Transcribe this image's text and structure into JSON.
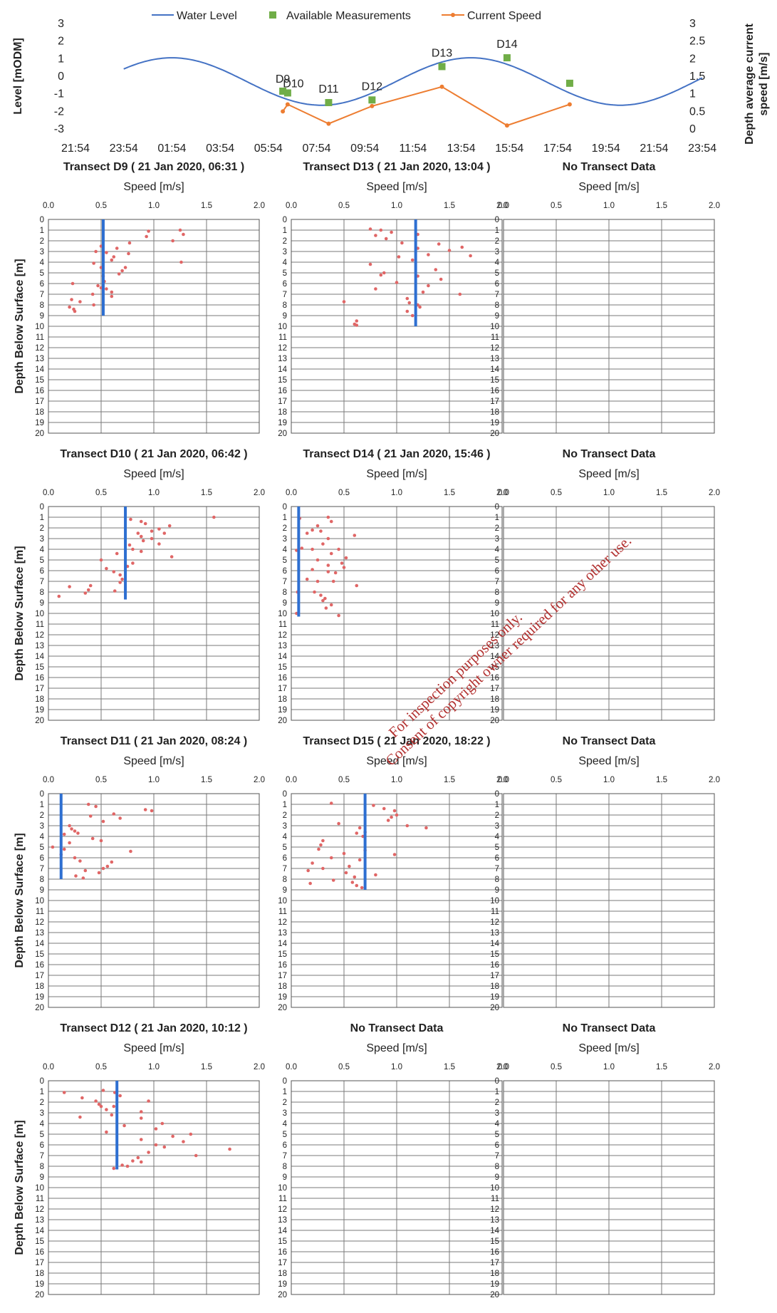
{
  "chart_data": [
    {
      "id": "tide",
      "type": "line",
      "legend": [
        "Water Level",
        "Available Measurements",
        "Current Speed"
      ],
      "ylabel": "Level [mODM]",
      "y2label_lines": [
        "Depth average current",
        "speed [m/s]"
      ],
      "x_ticks": [
        "21:54",
        "23:54",
        "01:54",
        "03:54",
        "05:54",
        "07:54",
        "09:54",
        "11:54",
        "13:54",
        "15:54",
        "17:54",
        "19:54",
        "21:54",
        "23:54"
      ],
      "y_ticks": [
        "3",
        "2",
        "1",
        "0",
        "-1",
        "-2",
        "-3"
      ],
      "y2_ticks": [
        "3",
        "2.5",
        "2",
        "1.5",
        "1",
        "0.5",
        "0"
      ],
      "ylim": [
        -3,
        3
      ],
      "y2lim": [
        0,
        3
      ],
      "x_unit": "hours after 21:54",
      "water_level": {
        "amplitude": 1.35,
        "mean": -0.3,
        "period_h": 12.4,
        "phase_h": 4.0,
        "start_h": 2.0,
        "end_h": 26.0
      },
      "measurements": [
        {
          "label": "D9",
          "x": 8.6,
          "y": -0.85
        },
        {
          "label": "D10",
          "x": 8.8,
          "y": -0.95
        },
        {
          "label": "D11",
          "x": 10.5,
          "y": -1.5
        },
        {
          "label": "D12",
          "x": 12.3,
          "y": -1.35
        },
        {
          "label": "D13",
          "x": 15.2,
          "y": 0.55
        },
        {
          "label": "D14",
          "x": 17.9,
          "y": 1.05
        },
        {
          "label": "",
          "x": 20.5,
          "y": -0.4
        }
      ],
      "current_speed": {
        "x": [
          8.6,
          8.8,
          10.5,
          12.3,
          15.2,
          17.9,
          20.5
        ],
        "y": [
          0.5,
          0.7,
          0.15,
          0.65,
          1.2,
          0.1,
          0.7
        ]
      }
    },
    {
      "id": "t-d9",
      "type": "scatter",
      "title": "Transect D9 ( 21 Jan 2020, 06:31 )",
      "xlabel": "Speed [m/s]",
      "ylabel": "Depth Below Surface [m]",
      "xlim": [
        0,
        2
      ],
      "ylim": [
        0,
        20
      ],
      "mean_speed": 0.52,
      "mean_depth": 9,
      "points": [
        [
          0.95,
          1.1
        ],
        [
          1.25,
          1.0
        ],
        [
          1.28,
          1.4
        ],
        [
          0.93,
          1.6
        ],
        [
          1.18,
          2.0
        ],
        [
          0.77,
          2.2
        ],
        [
          0.5,
          2.5
        ],
        [
          0.65,
          2.7
        ],
        [
          0.45,
          3.0
        ],
        [
          0.55,
          3.1
        ],
        [
          0.76,
          3.2
        ],
        [
          0.62,
          3.5
        ],
        [
          0.6,
          3.8
        ],
        [
          1.26,
          4.0
        ],
        [
          0.43,
          4.1
        ],
        [
          0.73,
          4.5
        ],
        [
          0.5,
          4.5
        ],
        [
          0.7,
          4.8
        ],
        [
          0.67,
          5.1
        ],
        [
          0.52,
          5.3
        ],
        [
          0.53,
          5.8
        ],
        [
          0.47,
          6.2
        ],
        [
          0.23,
          6.0
        ],
        [
          0.5,
          6.4
        ],
        [
          0.55,
          6.5
        ],
        [
          0.6,
          6.8
        ],
        [
          0.42,
          7.0
        ],
        [
          0.6,
          7.2
        ],
        [
          0.22,
          7.5
        ],
        [
          0.3,
          7.7
        ],
        [
          0.43,
          8.0
        ],
        [
          0.2,
          8.2
        ],
        [
          0.24,
          8.4
        ],
        [
          0.25,
          8.6
        ]
      ]
    },
    {
      "id": "t-d13",
      "type": "scatter",
      "title": "Transect D13 ( 21 Jan 2020, 13:04 )",
      "xlabel": "Speed [m/s]",
      "ylabel": "",
      "xlim": [
        0,
        2
      ],
      "ylim": [
        0,
        20
      ],
      "mean_speed": 1.18,
      "mean_depth": 10,
      "points": [
        [
          0.75,
          0.9
        ],
        [
          0.85,
          1.0
        ],
        [
          0.95,
          1.2
        ],
        [
          1.2,
          1.4
        ],
        [
          0.8,
          1.5
        ],
        [
          0.9,
          1.8
        ],
        [
          1.05,
          2.2
        ],
        [
          1.4,
          2.3
        ],
        [
          1.62,
          2.6
        ],
        [
          1.2,
          2.7
        ],
        [
          1.5,
          2.9
        ],
        [
          1.7,
          3.4
        ],
        [
          1.3,
          3.3
        ],
        [
          1.15,
          3.8
        ],
        [
          1.02,
          3.5
        ],
        [
          0.75,
          4.2
        ],
        [
          1.37,
          4.7
        ],
        [
          0.88,
          5.0
        ],
        [
          0.85,
          5.2
        ],
        [
          1.2,
          5.3
        ],
        [
          1.42,
          5.6
        ],
        [
          1.0,
          5.9
        ],
        [
          1.3,
          6.2
        ],
        [
          0.8,
          6.5
        ],
        [
          1.25,
          6.8
        ],
        [
          1.6,
          7.0
        ],
        [
          1.1,
          7.4
        ],
        [
          0.5,
          7.7
        ],
        [
          1.12,
          7.8
        ],
        [
          1.2,
          8.0
        ],
        [
          1.22,
          8.2
        ],
        [
          1.1,
          8.6
        ],
        [
          1.15,
          9.0
        ],
        [
          0.62,
          9.5
        ],
        [
          0.6,
          9.8
        ],
        [
          0.62,
          9.9
        ]
      ]
    },
    {
      "id": "t-nd-1",
      "type": "scatter",
      "title": "No Transect Data",
      "xlabel": "Speed [m/s]",
      "ylabel": "",
      "xlim": [
        0,
        2
      ],
      "ylim": [
        0,
        20
      ],
      "points": []
    },
    {
      "id": "t-d10",
      "type": "scatter",
      "title": "Transect D10 ( 21 Jan 2020, 06:42 )",
      "xlabel": "Speed [m/s]",
      "ylabel": "Depth Below Surface [m]",
      "xlim": [
        0,
        2
      ],
      "ylim": [
        0,
        20
      ],
      "mean_speed": 0.73,
      "mean_depth": 8.7,
      "points": [
        [
          1.57,
          1.0
        ],
        [
          0.78,
          1.2
        ],
        [
          0.88,
          1.4
        ],
        [
          0.92,
          1.6
        ],
        [
          1.15,
          1.8
        ],
        [
          1.05,
          2.1
        ],
        [
          0.98,
          2.3
        ],
        [
          0.85,
          2.5
        ],
        [
          1.1,
          2.5
        ],
        [
          0.88,
          2.8
        ],
        [
          0.98,
          3.0
        ],
        [
          0.9,
          3.2
        ],
        [
          1.05,
          3.5
        ],
        [
          0.77,
          3.6
        ],
        [
          0.8,
          4.0
        ],
        [
          0.88,
          4.2
        ],
        [
          0.65,
          4.4
        ],
        [
          1.17,
          4.7
        ],
        [
          0.5,
          5.0
        ],
        [
          0.8,
          5.3
        ],
        [
          0.75,
          5.6
        ],
        [
          0.55,
          5.8
        ],
        [
          0.62,
          6.1
        ],
        [
          0.68,
          6.4
        ],
        [
          0.7,
          6.8
        ],
        [
          0.68,
          7.1
        ],
        [
          0.4,
          7.4
        ],
        [
          0.2,
          7.5
        ],
        [
          0.38,
          7.8
        ],
        [
          0.63,
          7.9
        ],
        [
          0.35,
          8.1
        ],
        [
          0.1,
          8.4
        ]
      ]
    },
    {
      "id": "t-d14",
      "type": "scatter",
      "title": "Transect D14 ( 21 Jan 2020, 15:46 )",
      "xlabel": "Speed [m/s]",
      "ylabel": "",
      "xlim": [
        0,
        2
      ],
      "ylim": [
        0,
        20
      ],
      "mean_speed": 0.07,
      "mean_depth": 10.3,
      "points": [
        [
          0.08,
          1.1
        ],
        [
          0.35,
          1.0
        ],
        [
          0.38,
          1.4
        ],
        [
          0.25,
          1.8
        ],
        [
          0.2,
          2.2
        ],
        [
          0.15,
          2.5
        ],
        [
          0.28,
          2.3
        ],
        [
          0.6,
          2.7
        ],
        [
          0.35,
          3.0
        ],
        [
          0.3,
          3.5
        ],
        [
          0.1,
          3.9
        ],
        [
          0.2,
          4.0
        ],
        [
          0.05,
          4.1
        ],
        [
          0.45,
          4.0
        ],
        [
          0.38,
          4.4
        ],
        [
          0.52,
          4.8
        ],
        [
          0.25,
          5.0
        ],
        [
          0.48,
          5.3
        ],
        [
          0.35,
          5.5
        ],
        [
          0.5,
          5.7
        ],
        [
          0.2,
          5.9
        ],
        [
          0.35,
          6.1
        ],
        [
          0.42,
          6.2
        ],
        [
          0.15,
          6.8
        ],
        [
          0.25,
          7.0
        ],
        [
          0.4,
          7.0
        ],
        [
          0.62,
          7.4
        ],
        [
          0.06,
          8.0
        ],
        [
          0.22,
          8.0
        ],
        [
          0.28,
          8.3
        ],
        [
          0.32,
          8.6
        ],
        [
          0.3,
          8.8
        ],
        [
          0.38,
          9.2
        ],
        [
          0.33,
          9.5
        ],
        [
          0.05,
          10.0
        ],
        [
          0.45,
          10.2
        ]
      ]
    },
    {
      "id": "t-nd-2",
      "type": "scatter",
      "title": "No Transect Data",
      "xlabel": "Speed [m/s]",
      "ylabel": "",
      "xlim": [
        0,
        2
      ],
      "ylim": [
        0,
        20
      ],
      "points": []
    },
    {
      "id": "t-d11",
      "type": "scatter",
      "title": "Transect D11 ( 21 Jan 2020, 08:24 )",
      "xlabel": "Speed [m/s]",
      "ylabel": "Depth Below Surface [m]",
      "xlim": [
        0,
        2
      ],
      "ylim": [
        0,
        20
      ],
      "mean_speed": 0.12,
      "mean_depth": 8,
      "points": [
        [
          0.38,
          1.0
        ],
        [
          0.45,
          1.2
        ],
        [
          0.92,
          1.5
        ],
        [
          0.98,
          1.6
        ],
        [
          0.62,
          1.9
        ],
        [
          0.4,
          2.1
        ],
        [
          0.68,
          2.3
        ],
        [
          0.52,
          2.6
        ],
        [
          0.2,
          3.0
        ],
        [
          0.22,
          3.3
        ],
        [
          0.25,
          3.5
        ],
        [
          0.28,
          3.7
        ],
        [
          0.15,
          3.8
        ],
        [
          0.42,
          4.2
        ],
        [
          0.5,
          4.4
        ],
        [
          0.2,
          4.6
        ],
        [
          0.04,
          5.0
        ],
        [
          0.15,
          5.2
        ],
        [
          0.78,
          5.4
        ],
        [
          0.12,
          5.7
        ],
        [
          0.25,
          6.0
        ],
        [
          0.3,
          6.3
        ],
        [
          0.6,
          6.4
        ],
        [
          0.56,
          6.8
        ],
        [
          0.52,
          7.0
        ],
        [
          0.35,
          7.2
        ],
        [
          0.48,
          7.4
        ],
        [
          0.26,
          7.7
        ],
        [
          0.33,
          7.9
        ]
      ]
    },
    {
      "id": "t-d15",
      "type": "scatter",
      "title": "Transect D15 ( 21 Jan 2020, 18:22 )",
      "xlabel": "Speed [m/s]",
      "ylabel": "",
      "xlim": [
        0,
        2
      ],
      "ylim": [
        0,
        20
      ],
      "mean_speed": 0.7,
      "mean_depth": 9,
      "points": [
        [
          0.38,
          0.9
        ],
        [
          0.78,
          1.1
        ],
        [
          0.88,
          1.4
        ],
        [
          0.98,
          1.6
        ],
        [
          1.0,
          2.0
        ],
        [
          0.95,
          2.2
        ],
        [
          0.92,
          2.5
        ],
        [
          1.1,
          3.0
        ],
        [
          1.28,
          3.2
        ],
        [
          0.45,
          2.8
        ],
        [
          0.65,
          3.2
        ],
        [
          0.62,
          3.7
        ],
        [
          0.7,
          3.6
        ],
        [
          0.68,
          4.0
        ],
        [
          0.3,
          4.4
        ],
        [
          0.28,
          4.8
        ],
        [
          0.26,
          5.2
        ],
        [
          0.7,
          5.3
        ],
        [
          0.98,
          5.7
        ],
        [
          0.5,
          5.6
        ],
        [
          0.38,
          6.0
        ],
        [
          0.65,
          6.2
        ],
        [
          0.2,
          6.5
        ],
        [
          0.55,
          6.8
        ],
        [
          0.3,
          7.0
        ],
        [
          0.16,
          7.2
        ],
        [
          0.52,
          7.4
        ],
        [
          0.8,
          7.6
        ],
        [
          0.6,
          7.8
        ],
        [
          0.4,
          8.1
        ],
        [
          0.58,
          8.3
        ],
        [
          0.18,
          8.4
        ],
        [
          0.62,
          8.6
        ],
        [
          0.67,
          8.8
        ]
      ]
    },
    {
      "id": "t-nd-3",
      "type": "scatter",
      "title": "No Transect Data",
      "xlabel": "Speed [m/s]",
      "ylabel": "",
      "xlim": [
        0,
        2
      ],
      "ylim": [
        0,
        20
      ],
      "points": []
    },
    {
      "id": "t-d12",
      "type": "scatter",
      "title": "Transect D12 ( 21 Jan 2020, 10:12 )",
      "xlabel": "Speed [m/s]",
      "ylabel": "Depth Below Surface [m]",
      "xlim": [
        0,
        2
      ],
      "ylim": [
        0,
        20
      ],
      "mean_speed": 0.65,
      "mean_depth": 8.3,
      "points": [
        [
          0.15,
          1.1
        ],
        [
          0.52,
          0.9
        ],
        [
          0.63,
          1.1
        ],
        [
          0.68,
          1.4
        ],
        [
          0.32,
          1.6
        ],
        [
          0.45,
          1.9
        ],
        [
          0.48,
          2.2
        ],
        [
          0.5,
          2.4
        ],
        [
          0.95,
          1.9
        ],
        [
          0.62,
          2.4
        ],
        [
          0.55,
          2.7
        ],
        [
          0.88,
          2.9
        ],
        [
          0.6,
          3.2
        ],
        [
          0.3,
          3.4
        ],
        [
          0.88,
          3.5
        ],
        [
          0.72,
          4.2
        ],
        [
          1.08,
          4.0
        ],
        [
          1.02,
          4.5
        ],
        [
          1.35,
          5.0
        ],
        [
          1.18,
          5.2
        ],
        [
          0.55,
          4.8
        ],
        [
          0.88,
          5.5
        ],
        [
          1.28,
          5.7
        ],
        [
          1.02,
          6.0
        ],
        [
          1.1,
          6.2
        ],
        [
          1.72,
          6.4
        ],
        [
          0.95,
          6.7
        ],
        [
          1.4,
          7.0
        ],
        [
          0.85,
          7.2
        ],
        [
          0.8,
          7.5
        ],
        [
          0.88,
          7.6
        ],
        [
          0.7,
          7.9
        ],
        [
          0.62,
          8.2
        ],
        [
          0.75,
          8.0
        ]
      ]
    },
    {
      "id": "t-nd-4",
      "type": "scatter",
      "title": "No Transect Data",
      "xlabel": "Speed [m/s]",
      "ylabel": "",
      "xlim": [
        0,
        2
      ],
      "ylim": [
        0,
        20
      ],
      "points": []
    },
    {
      "id": "t-nd-5",
      "type": "scatter",
      "title": "No Transect Data",
      "xlabel": "Speed [m/s]",
      "ylabel": "",
      "xlim": [
        0,
        2
      ],
      "ylim": [
        0,
        20
      ],
      "points": []
    }
  ],
  "panel_x_ticks": [
    "0.0",
    "0.5",
    "1.0",
    "1.5",
    "2.0"
  ],
  "panel_y_ticks": [
    "0",
    "1",
    "2",
    "3",
    "4",
    "5",
    "6",
    "7",
    "8",
    "9",
    "10",
    "11",
    "12",
    "13",
    "14",
    "15",
    "16",
    "17",
    "18",
    "19",
    "20"
  ],
  "watermark": [
    "For inspection purposes only.",
    "Consent of copyright owner required for any other use."
  ],
  "colors": {
    "water_level": "#4472c4",
    "measurements": "#70ad47",
    "current_speed": "#ed7d31",
    "points": "#e06666",
    "mean_line": "#2e6fd1",
    "watermark": "#b2302f"
  }
}
